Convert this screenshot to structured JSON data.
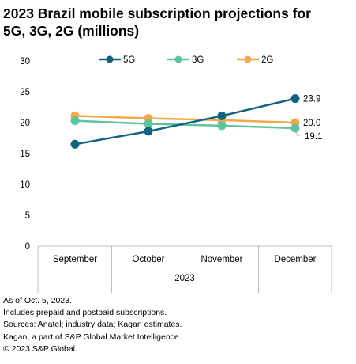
{
  "title_line1": "2023 Brazil mobile subscription projections for",
  "title_line2": "5G, 3G, 2G (millions)",
  "chart_data": {
    "type": "line",
    "categories": [
      "September",
      "October",
      "November",
      "December"
    ],
    "xlabel": "2023",
    "ylabel": "",
    "ylim": [
      0,
      30
    ],
    "yticks": [
      0,
      5,
      10,
      15,
      20,
      25,
      30
    ],
    "grid": false,
    "legend_position": "top",
    "series": [
      {
        "name": "5G",
        "color": "#13627f",
        "values": [
          16.5,
          18.6,
          21.1,
          23.9
        ],
        "end_label": "23.9"
      },
      {
        "name": "3G",
        "color": "#5cc49e",
        "values": [
          20.3,
          19.8,
          19.5,
          19.1
        ],
        "end_label": "19.1"
      },
      {
        "name": "2G",
        "color": "#f2a94a",
        "values": [
          21.1,
          20.7,
          20.4,
          20.0
        ],
        "end_label": "20.0"
      }
    ]
  },
  "notes": [
    "As of Oct. 5, 2023.",
    "Includes prepaid and postpaid subscriptions.",
    "Sources: Anatel; industry data; Kagan estimates.",
    "Kagan, a part of S&P Global Market Intelligence.",
    "© 2023 S&P Global."
  ]
}
